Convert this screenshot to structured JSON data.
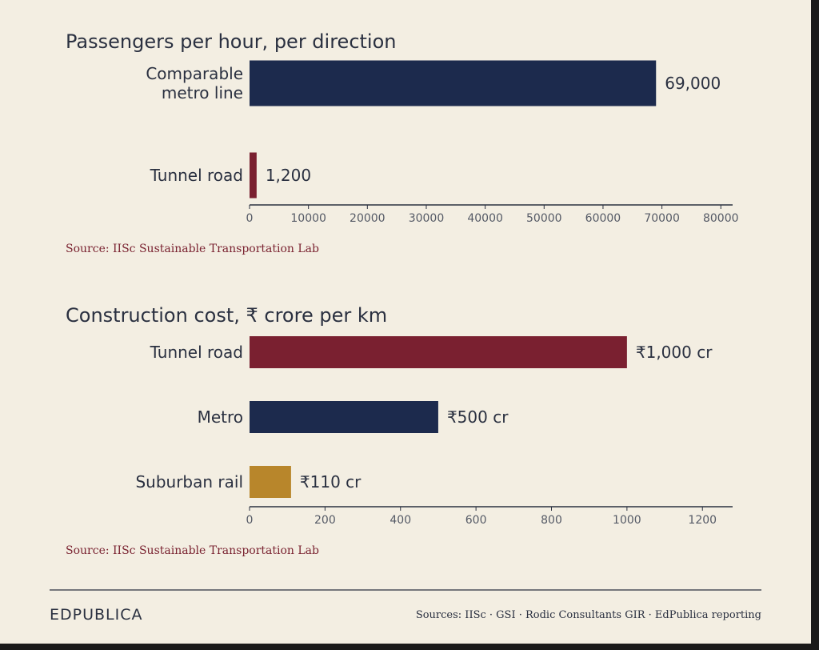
{
  "chart_data": [
    {
      "type": "bar",
      "orientation": "horizontal",
      "title": "Passengers per hour, per direction",
      "categories": [
        "Comparable metro line",
        "Tunnel road"
      ],
      "category_lines": [
        [
          "Comparable",
          "metro line"
        ],
        [
          "Tunnel road"
        ]
      ],
      "values": [
        69000,
        1200
      ],
      "value_labels": [
        "69,000",
        "1,200"
      ],
      "colors": [
        "#1c2a4d",
        "#7a2030"
      ],
      "xlim": [
        0,
        82000
      ],
      "ticks": [
        0,
        10000,
        20000,
        30000,
        40000,
        50000,
        60000,
        70000,
        80000
      ],
      "tick_labels": [
        "0",
        "10000",
        "20000",
        "30000",
        "40000",
        "50000",
        "60000",
        "70000",
        "80000"
      ],
      "source": "Source: IISc Sustainable Transportation Lab"
    },
    {
      "type": "bar",
      "orientation": "horizontal",
      "title": "Construction cost, ₹ crore per km",
      "categories": [
        "Tunnel road",
        "Metro",
        "Suburban rail"
      ],
      "category_lines": [
        [
          "Tunnel road"
        ],
        [
          "Metro"
        ],
        [
          "Suburban rail"
        ]
      ],
      "values": [
        1000,
        500,
        110
      ],
      "value_labels": [
        "₹1,000 cr",
        "₹500 cr",
        "₹110 cr"
      ],
      "colors": [
        "#7a2030",
        "#1c2a4d",
        "#b8862b"
      ],
      "xlim": [
        0,
        1280
      ],
      "ticks": [
        0,
        200,
        400,
        600,
        800,
        1000,
        1200
      ],
      "tick_labels": [
        "0",
        "200",
        "400",
        "600",
        "800",
        "1000",
        "1200"
      ],
      "source": "Source: IISc Sustainable Transportation Lab"
    }
  ],
  "footer": {
    "brand": "EDPUBLICA",
    "sources": "Sources: IISc · GSI · Rodic Consultants GIR · EdPublica reporting"
  }
}
